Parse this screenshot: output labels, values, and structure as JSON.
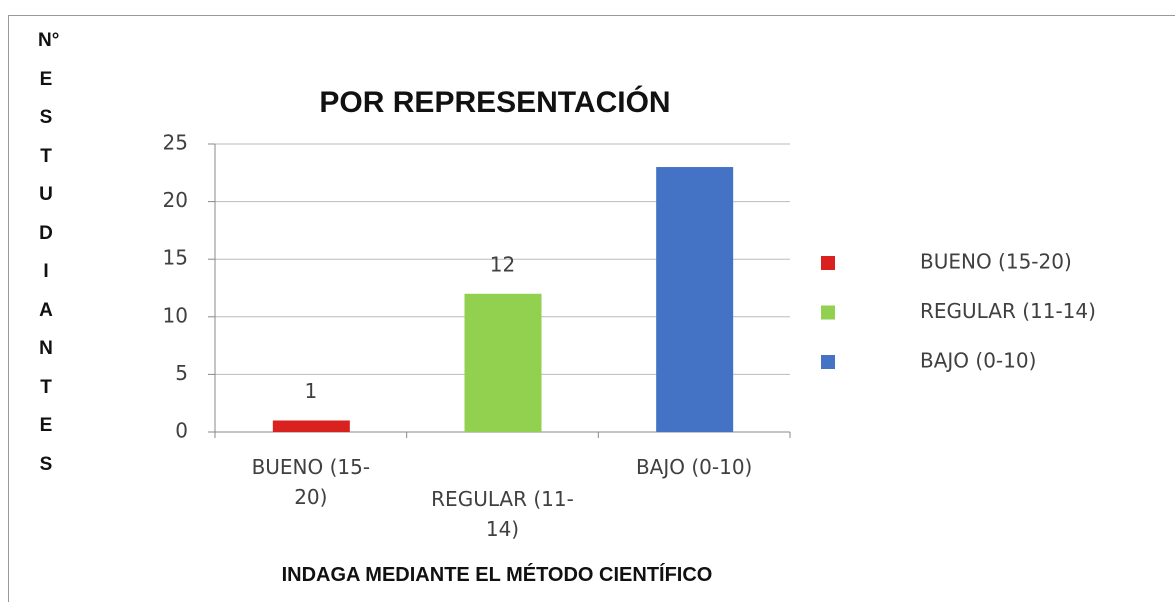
{
  "chart_data": {
    "type": "bar",
    "title": "POR REPRESENTACIÓN",
    "x_label": "INDAGA MEDIANTE EL MÉTODO CIENTÍFICO",
    "y_label": "N° ESTUDIANTES",
    "categories": [
      "BUENO (15-20)",
      "REGULAR (11-14)",
      "BAJO (0-10)"
    ],
    "values": [
      1,
      12,
      23
    ],
    "colors": [
      "#d92120",
      "#92d050",
      "#4472c4"
    ],
    "data_labels": [
      true,
      true,
      false
    ],
    "ylim": [
      0,
      25
    ],
    "yticks": [
      0,
      5,
      10,
      15,
      20,
      25
    ],
    "grid": true,
    "legend": "right"
  }
}
